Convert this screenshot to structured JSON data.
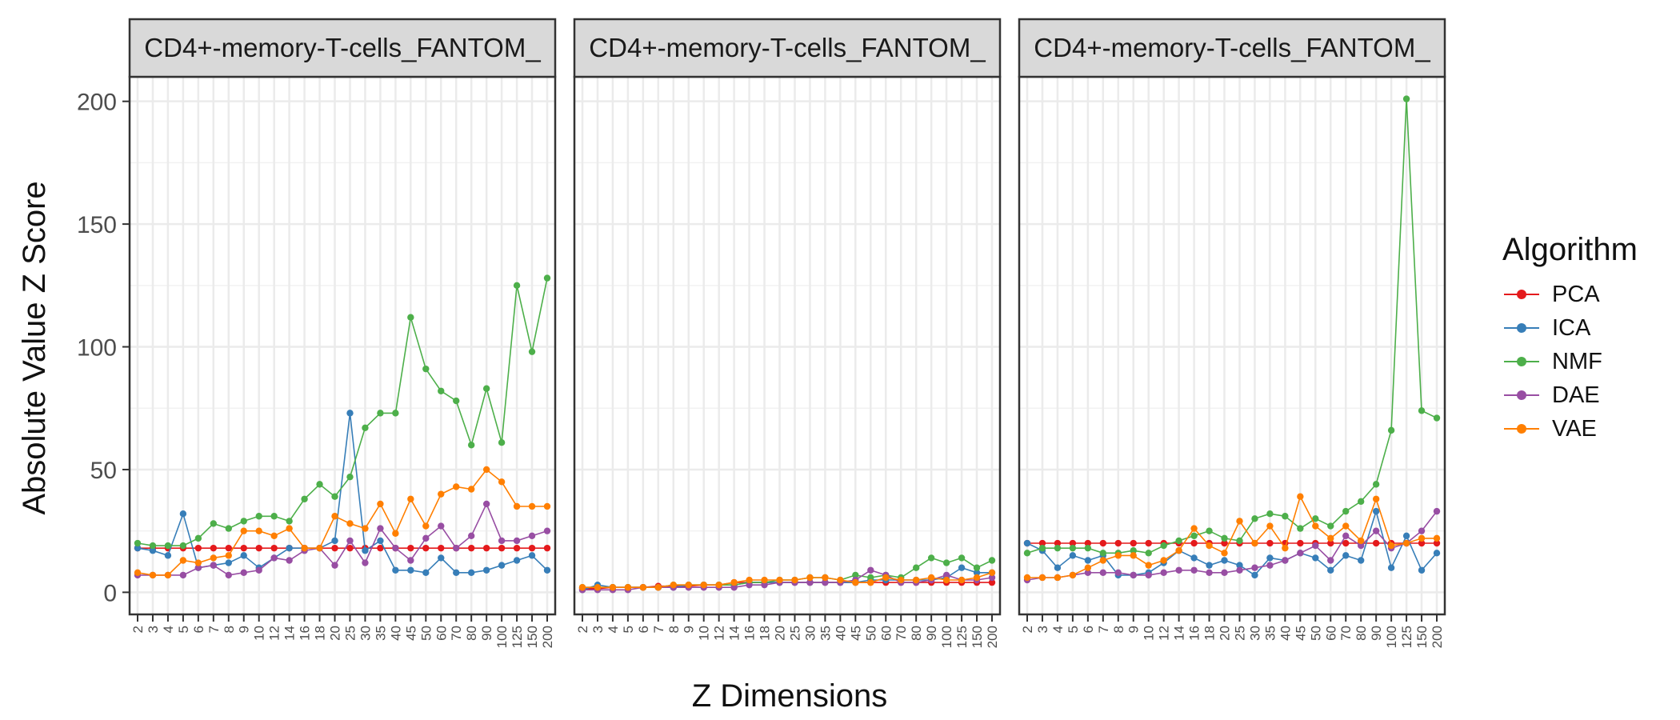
{
  "chart_data": {
    "type": "line",
    "ylabel": "Absolute Value Z Score",
    "xlabel": "Z Dimensions",
    "x_categories": [
      "2",
      "3",
      "4",
      "5",
      "6",
      "7",
      "8",
      "9",
      "10",
      "12",
      "14",
      "16",
      "18",
      "20",
      "25",
      "30",
      "35",
      "40",
      "45",
      "50",
      "60",
      "70",
      "80",
      "90",
      "100",
      "125",
      "150",
      "200"
    ],
    "ylim": [
      -9,
      210
    ],
    "yticks": [
      0,
      50,
      100,
      150,
      200
    ],
    "grid": true,
    "legend": {
      "title": "Algorithm",
      "position": "right",
      "entries": [
        {
          "name": "PCA",
          "color": "#e41a1c"
        },
        {
          "name": "ICA",
          "color": "#377eb8"
        },
        {
          "name": "NMF",
          "color": "#4daf4a"
        },
        {
          "name": "DAE",
          "color": "#984ea3"
        },
        {
          "name": "VAE",
          "color": "#ff7f00"
        }
      ]
    },
    "panels": [
      {
        "strip": "CD4+-memory-T-cells_FANTOM_",
        "series": [
          {
            "name": "PCA",
            "values": [
              18,
              18,
              18,
              18,
              18,
              18,
              18,
              18,
              18,
              18,
              18,
              18,
              18,
              18,
              18,
              18,
              18,
              18,
              18,
              18,
              18,
              18,
              18,
              18,
              18,
              18,
              18,
              18
            ]
          },
          {
            "name": "ICA",
            "values": [
              18,
              17,
              15,
              32,
              10,
              11,
              12,
              15,
              10,
              14,
              18,
              18,
              18,
              21,
              73,
              17,
              21,
              9,
              9,
              8,
              14,
              8,
              8,
              9,
              11,
              13,
              15,
              9
            ]
          },
          {
            "name": "NMF",
            "values": [
              20,
              19,
              19,
              19,
              22,
              28,
              26,
              29,
              31,
              31,
              29,
              38,
              44,
              39,
              47,
              67,
              73,
              73,
              112,
              91,
              82,
              78,
              60,
              83,
              61,
              125,
              98,
              128
            ]
          },
          {
            "name": "DAE",
            "values": [
              7,
              7,
              7,
              7,
              10,
              11,
              7,
              8,
              9,
              14,
              13,
              17,
              18,
              11,
              21,
              12,
              26,
              18,
              13,
              22,
              27,
              18,
              23,
              36,
              21,
              21,
              23,
              25
            ]
          },
          {
            "name": "VAE",
            "values": [
              8,
              7,
              7,
              13,
              12,
              14,
              15,
              25,
              25,
              23,
              26,
              18,
              18,
              31,
              28,
              26,
              36,
              24,
              38,
              27,
              40,
              43,
              42,
              50,
              45,
              35,
              35,
              35
            ]
          }
        ]
      },
      {
        "strip": "CD4+-memory-T-cells_FANTOM_",
        "series": [
          {
            "name": "PCA",
            "values": [
              1.5,
              1.5,
              2,
              2,
              2,
              2.5,
              2.5,
              2.5,
              3,
              3,
              4,
              4,
              4,
              4,
              4,
              4,
              4,
              4,
              4,
              4,
              4,
              4,
              4,
              4,
              4,
              4,
              4,
              4
            ]
          },
          {
            "name": "ICA",
            "values": [
              1,
              3,
              2,
              2,
              2,
              2,
              2,
              3,
              3,
              3,
              3,
              4,
              4,
              4,
              4,
              4,
              4,
              4,
              4,
              5,
              5,
              5,
              5,
              5,
              6,
              10,
              8,
              8
            ]
          },
          {
            "name": "NMF",
            "values": [
              2,
              2,
              2,
              2,
              2,
              2,
              3,
              3,
              3,
              3,
              3,
              4,
              4,
              5,
              5,
              6,
              6,
              5,
              7,
              6,
              7,
              6,
              10,
              14,
              12,
              14,
              10,
              13
            ]
          },
          {
            "name": "DAE",
            "values": [
              1,
              1,
              1,
              1,
              2,
              2,
              2,
              2,
              2,
              2,
              2,
              3,
              3,
              4,
              4,
              4,
              4,
              4,
              5,
              9,
              7,
              4,
              4,
              5,
              7,
              5,
              5,
              6
            ]
          },
          {
            "name": "VAE",
            "values": [
              2,
              2,
              2,
              2,
              2,
              2,
              3,
              3,
              3,
              3,
              4,
              5,
              5,
              5,
              5,
              6,
              6,
              5,
              4,
              4,
              6,
              5,
              5,
              6,
              5,
              5,
              6,
              8
            ]
          }
        ]
      },
      {
        "strip": "CD4+-memory-T-cells_FANTOM_",
        "series": [
          {
            "name": "PCA",
            "values": [
              20,
              20,
              20,
              20,
              20,
              20,
              20,
              20,
              20,
              20,
              20,
              20,
              20,
              20,
              20,
              20,
              20,
              20,
              20,
              20,
              20,
              20,
              20,
              20,
              20,
              20,
              20,
              20
            ]
          },
          {
            "name": "ICA",
            "values": [
              20,
              17,
              10,
              15,
              13,
              15,
              7,
              7,
              8,
              12,
              17,
              14,
              11,
              13,
              11,
              7,
              14,
              13,
              16,
              14,
              9,
              15,
              13,
              33,
              10,
              23,
              9,
              16
            ]
          },
          {
            "name": "NMF",
            "values": [
              16,
              18,
              18,
              18,
              18,
              16,
              16,
              17,
              16,
              19,
              21,
              23,
              25,
              22,
              21,
              30,
              32,
              31,
              26,
              30,
              27,
              33,
              37,
              44,
              66,
              201,
              74,
              71
            ]
          },
          {
            "name": "DAE",
            "values": [
              5,
              6,
              6,
              7,
              8,
              8,
              8,
              7,
              7,
              8,
              9,
              9,
              8,
              8,
              9,
              10,
              11,
              13,
              16,
              19,
              13,
              23,
              19,
              25,
              18,
              20,
              25,
              33
            ]
          },
          {
            "name": "VAE",
            "values": [
              6,
              6,
              6,
              7,
              10,
              13,
              15,
              15,
              11,
              13,
              17,
              26,
              19,
              16,
              29,
              20,
              27,
              18,
              39,
              27,
              22,
              27,
              21,
              38,
              19,
              20,
              22,
              22
            ]
          }
        ]
      }
    ]
  }
}
